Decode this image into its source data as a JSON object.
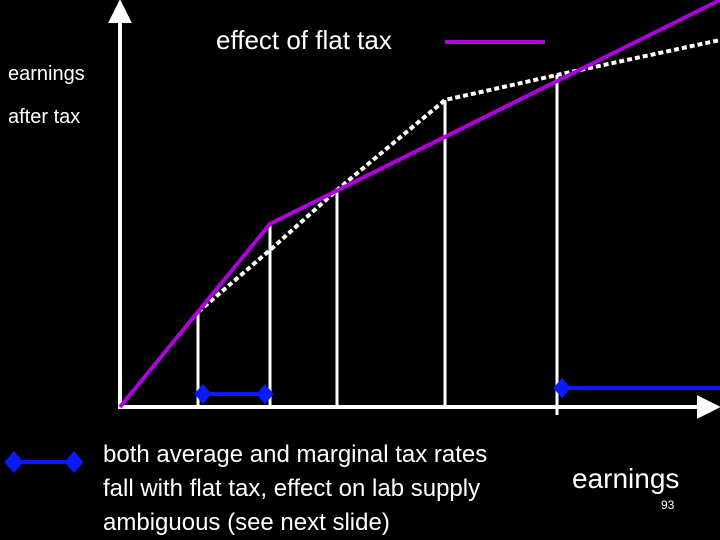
{
  "legend": "effect of flat tax",
  "y_axis_label": [
    "earnings",
    "after tax"
  ],
  "x_axis_label": "earnings",
  "note": {
    "lines": [
      "both average and marginal tax rates",
      "fall with flat tax, effect on lab supply",
      "ambiguous (see next slide)"
    ]
  },
  "page_number": "93"
}
